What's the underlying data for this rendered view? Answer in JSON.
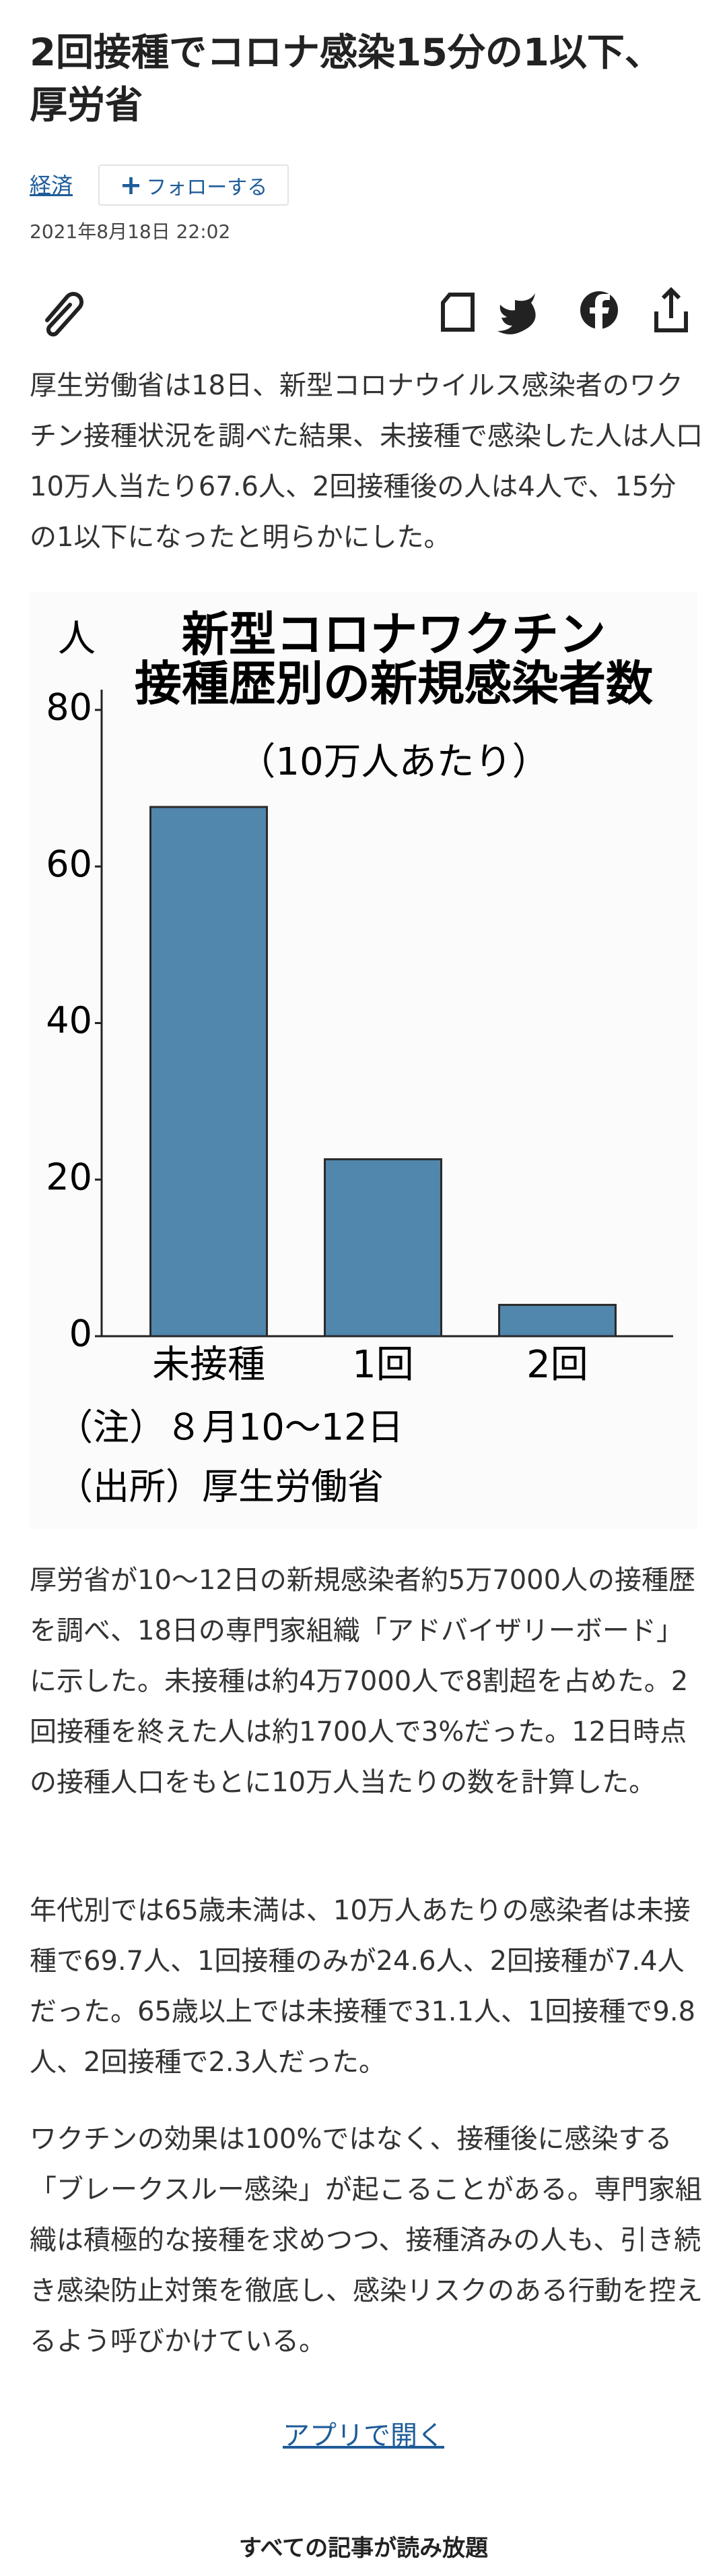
{
  "article": {
    "title": "2回接種でコロナ感染15分の1以下、厚労省",
    "category": "経済",
    "follow": "フォローする",
    "date": "2021年8月18日 22:02",
    "lead": "厚生労働省は18日、新型コロナウイルス感染者のワクチン接種状況を調べた結果、未接種で感染した人は人口10万人当たり67.6人、2回接種後の人は4人で、15分の1以下になったと明らかにした。",
    "body": [
      "厚労省が10〜12日の新規感染者約5万7000人の接種歴を調べ、18日の専門家組織「アドバイザリーボード」に示した。未接種は約4万7000人で8割超を占めた。2回接種を終えた人は約1700人で3%だった。12日時点の接種人口をもとに10万人当たりの数を計算した。",
      "年代別では65歳未満は、10万人あたりの感染者は未接種で69.7人、1回接種のみが24.6人、2回接種が7.4人だった。65歳以上では未接種で31.1人、1回接種で9.8人、2回接種で2.3人だった。",
      "ワクチンの効果は100%ではなく、接種後に感染する「ブレークスルー感染」が起こることがある。専門家組織は積極的な接種を求めつつ、接種済みの人も、引き続き感染防止対策を徹底し、感染リスクのある行動を控えるよう呼びかけている。"
    ],
    "app_link": "アプリで開く",
    "promo": "すべての記事が読み放題"
  },
  "chart_data": {
    "type": "bar",
    "title": [
      "新型コロナワクチン",
      "接種歴別の新規感染者数"
    ],
    "subtitle": "（10万人あたり）",
    "y_label": "人",
    "categories": [
      "未接種",
      "1回",
      "2回"
    ],
    "values": [
      67.6,
      22.6,
      4
    ],
    "color": "#5186ad",
    "ylim": [
      0,
      80
    ],
    "yticks": [
      0,
      20,
      40,
      60,
      80
    ],
    "grid": false,
    "notes": [
      "（注）８月10〜12日",
      "（出所）厚生労働省"
    ]
  }
}
